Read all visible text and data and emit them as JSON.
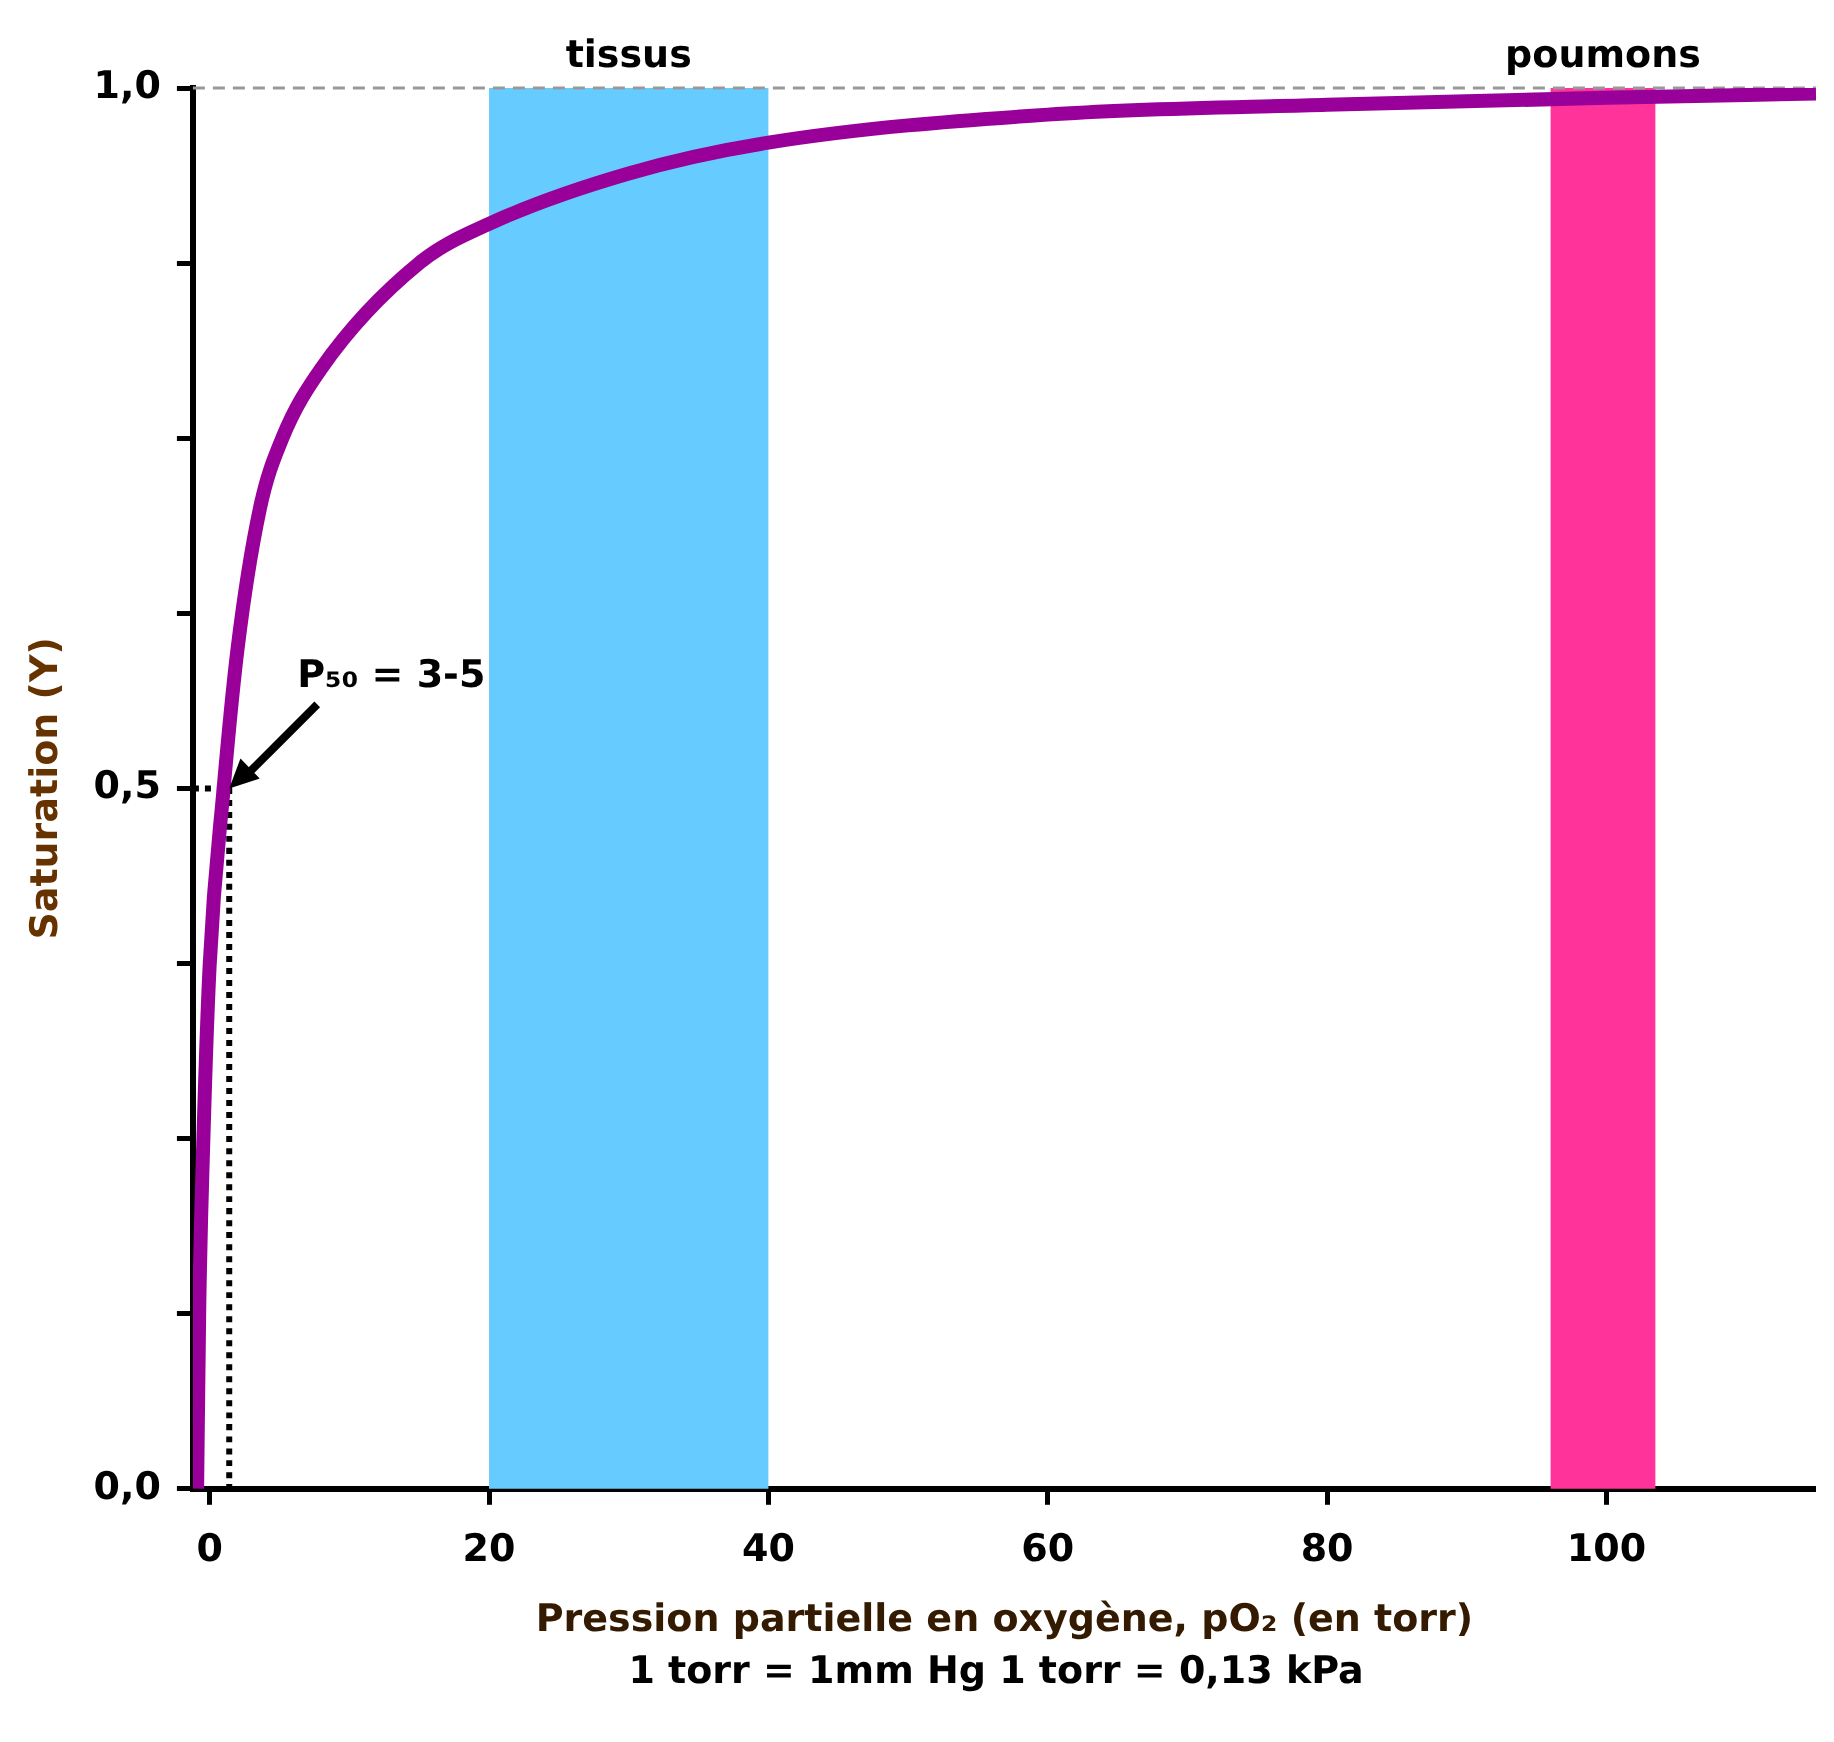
{
  "chart_data": {
    "type": "line",
    "xlabel": "Pression partielle en oxygène, pO₂ (en torr)",
    "ylabel": "Saturation (Y)",
    "xlim": [
      -1.2,
      115
    ],
    "xticks": [
      0,
      20,
      40,
      60,
      80,
      100
    ],
    "ylim": [
      0,
      1
    ],
    "yticks": [
      {
        "value": 0,
        "label": "0,0"
      },
      {
        "value": 0.125,
        "label": null
      },
      {
        "value": 0.25,
        "label": null
      },
      {
        "value": 0.375,
        "label": null
      },
      {
        "value": 0.5,
        "label": "0,5"
      },
      {
        "value": 0.625,
        "label": null
      },
      {
        "value": 0.75,
        "label": null
      },
      {
        "value": 0.875,
        "label": null
      },
      {
        "value": 1,
        "label": "1,0"
      }
    ],
    "series": [
      {
        "color": "#990099",
        "x": [
          -0.9,
          -0.75,
          -0.45,
          0,
          1.0,
          2.0,
          3.6,
          5.2,
          8,
          15,
          20,
          30,
          40,
          60,
          80,
          100,
          115
        ],
        "values": [
          0,
          0.127,
          0.25,
          0.374,
          0.5,
          0.6,
          0.7,
          0.75,
          0.8,
          0.875,
          0.903,
          0.939,
          0.961,
          0.981,
          0.988,
          0.993,
          0.996
        ]
      },
      {
        "color": "#000000",
        "line_style": "dotted",
        "x": [
          -1.2,
          1.4,
          1.4
        ],
        "values": [
          0.5,
          0.5,
          0
        ]
      }
    ],
    "bands": [
      {
        "axis": "x",
        "from": 20,
        "to": 40,
        "label": "tissus",
        "color": "#66ccff"
      },
      {
        "axis": "x",
        "from": 96,
        "to": 103.5,
        "label": "poumons",
        "color": "#ff3399"
      }
    ],
    "ref_lines": [
      {
        "axis": "y",
        "value": 1,
        "color": "#999999",
        "line_style": "dashed"
      }
    ],
    "annotations": [
      {
        "text": "P₅₀ = 3-5",
        "x": 1.4,
        "y": 0.5
      },
      "1 torr = 1mm Hg 1 torr = 0,13 kPa"
    ]
  }
}
